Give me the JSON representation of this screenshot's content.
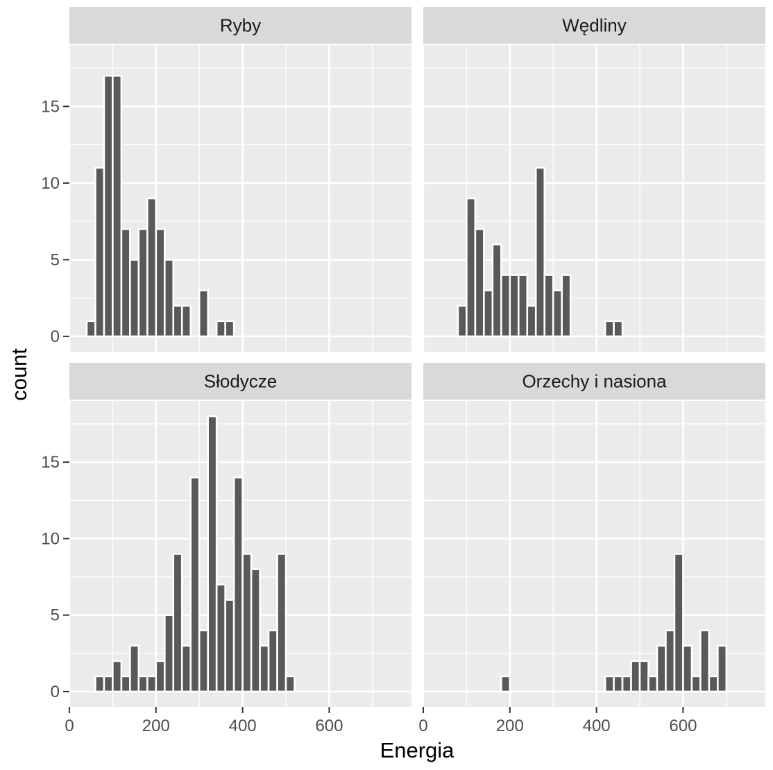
{
  "chart_data": {
    "type": "bar",
    "subtype": "faceted-histogram",
    "xlabel": "Energia",
    "ylabel": "count",
    "xlim": [
      0,
      790
    ],
    "ylim": [
      -1,
      19
    ],
    "x_ticks": [
      0,
      200,
      400,
      600
    ],
    "y_ticks": [
      0,
      5,
      10,
      15
    ],
    "bin_width": 20,
    "grid": true,
    "colors": {
      "bar_fill": "#595959",
      "bar_outline": "#ffffff",
      "panel_background": "#ebebeb",
      "strip_background": "#d9d9d9",
      "grid": "#ffffff"
    },
    "facets": [
      {
        "name": "Ryby",
        "bins": [
          {
            "x": 50,
            "count": 1
          },
          {
            "x": 70,
            "count": 11
          },
          {
            "x": 90,
            "count": 17
          },
          {
            "x": 110,
            "count": 17
          },
          {
            "x": 130,
            "count": 7
          },
          {
            "x": 150,
            "count": 5
          },
          {
            "x": 170,
            "count": 7
          },
          {
            "x": 190,
            "count": 9
          },
          {
            "x": 210,
            "count": 7
          },
          {
            "x": 230,
            "count": 5
          },
          {
            "x": 250,
            "count": 2
          },
          {
            "x": 270,
            "count": 2
          },
          {
            "x": 310,
            "count": 3
          },
          {
            "x": 350,
            "count": 1
          },
          {
            "x": 370,
            "count": 1
          }
        ]
      },
      {
        "name": "Wędliny",
        "bins": [
          {
            "x": 90,
            "count": 2
          },
          {
            "x": 110,
            "count": 9
          },
          {
            "x": 130,
            "count": 7
          },
          {
            "x": 150,
            "count": 3
          },
          {
            "x": 170,
            "count": 6
          },
          {
            "x": 190,
            "count": 4
          },
          {
            "x": 210,
            "count": 4
          },
          {
            "x": 230,
            "count": 4
          },
          {
            "x": 250,
            "count": 2
          },
          {
            "x": 270,
            "count": 11
          },
          {
            "x": 290,
            "count": 4
          },
          {
            "x": 310,
            "count": 3
          },
          {
            "x": 330,
            "count": 4
          },
          {
            "x": 430,
            "count": 1
          },
          {
            "x": 450,
            "count": 1
          }
        ]
      },
      {
        "name": "Słodycze",
        "bins": [
          {
            "x": 70,
            "count": 1
          },
          {
            "x": 90,
            "count": 1
          },
          {
            "x": 110,
            "count": 2
          },
          {
            "x": 130,
            "count": 1
          },
          {
            "x": 150,
            "count": 3
          },
          {
            "x": 170,
            "count": 1
          },
          {
            "x": 190,
            "count": 1
          },
          {
            "x": 210,
            "count": 2
          },
          {
            "x": 230,
            "count": 5
          },
          {
            "x": 250,
            "count": 9
          },
          {
            "x": 270,
            "count": 3
          },
          {
            "x": 290,
            "count": 14
          },
          {
            "x": 310,
            "count": 4
          },
          {
            "x": 330,
            "count": 18
          },
          {
            "x": 350,
            "count": 7
          },
          {
            "x": 370,
            "count": 6
          },
          {
            "x": 390,
            "count": 14
          },
          {
            "x": 410,
            "count": 9
          },
          {
            "x": 430,
            "count": 8
          },
          {
            "x": 450,
            "count": 3
          },
          {
            "x": 470,
            "count": 4
          },
          {
            "x": 490,
            "count": 9
          },
          {
            "x": 510,
            "count": 1
          }
        ]
      },
      {
        "name": "Orzechy i nasiona",
        "bins": [
          {
            "x": 190,
            "count": 1
          },
          {
            "x": 430,
            "count": 1
          },
          {
            "x": 450,
            "count": 1
          },
          {
            "x": 470,
            "count": 1
          },
          {
            "x": 490,
            "count": 2
          },
          {
            "x": 510,
            "count": 2
          },
          {
            "x": 530,
            "count": 1
          },
          {
            "x": 550,
            "count": 3
          },
          {
            "x": 570,
            "count": 4
          },
          {
            "x": 590,
            "count": 9
          },
          {
            "x": 610,
            "count": 3
          },
          {
            "x": 630,
            "count": 1
          },
          {
            "x": 650,
            "count": 4
          },
          {
            "x": 670,
            "count": 1
          },
          {
            "x": 690,
            "count": 3
          }
        ]
      }
    ]
  }
}
